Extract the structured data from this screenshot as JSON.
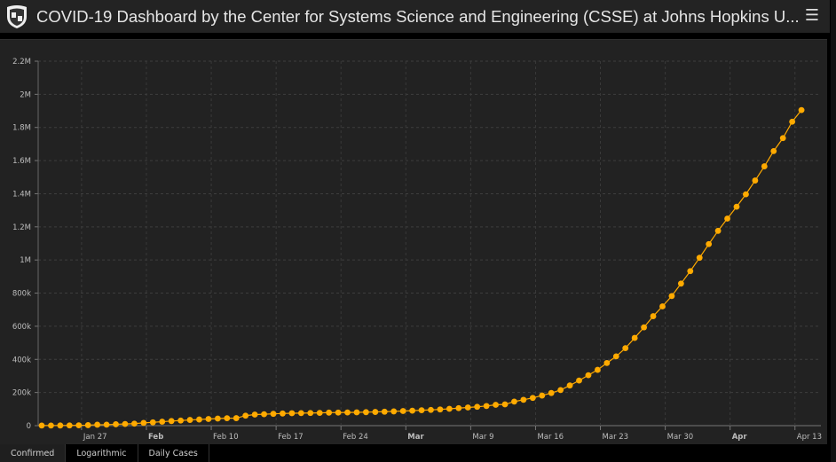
{
  "header": {
    "title": "COVID-19 Dashboard by the Center for Systems Science and Engineering (CSSE) at Johns Hopkins U...",
    "menu_icon": "hamburger-icon",
    "logo": "jhu-shield-logo"
  },
  "tabs": [
    {
      "label": "Confirmed",
      "active": true
    },
    {
      "label": "Logarithmic",
      "active": false
    },
    {
      "label": "Daily Cases",
      "active": false
    }
  ],
  "colors": {
    "series": "#ffaa00",
    "background": "#222222",
    "grid": "#444444"
  },
  "chart_data": {
    "type": "line",
    "title": "",
    "xlabel": "",
    "ylabel": "",
    "ylim": [
      0,
      2200000
    ],
    "yticks": [
      {
        "v": 0,
        "label": "0"
      },
      {
        "v": 200000,
        "label": "200k"
      },
      {
        "v": 400000,
        "label": "400k"
      },
      {
        "v": 600000,
        "label": "600k"
      },
      {
        "v": 800000,
        "label": "800k"
      },
      {
        "v": 1000000,
        "label": "1M"
      },
      {
        "v": 1200000,
        "label": "1.2M"
      },
      {
        "v": 1400000,
        "label": "1.4M"
      },
      {
        "v": 1600000,
        "label": "1.6M"
      },
      {
        "v": 1800000,
        "label": "1.8M"
      },
      {
        "v": 2000000,
        "label": "2M"
      },
      {
        "v": 2200000,
        "label": "2.2M"
      }
    ],
    "xticks": [
      {
        "day": 5,
        "label": "Jan 27",
        "bold": false
      },
      {
        "day": 12,
        "label": "Feb",
        "bold": true
      },
      {
        "day": 19,
        "label": "Feb 10",
        "bold": false
      },
      {
        "day": 26,
        "label": "Feb 17",
        "bold": false
      },
      {
        "day": 33,
        "label": "Feb 24",
        "bold": false
      },
      {
        "day": 40,
        "label": "Mar",
        "bold": true
      },
      {
        "day": 47,
        "label": "Mar 9",
        "bold": false
      },
      {
        "day": 54,
        "label": "Mar 16",
        "bold": false
      },
      {
        "day": 61,
        "label": "Mar 23",
        "bold": false
      },
      {
        "day": 68,
        "label": "Mar 30",
        "bold": false
      },
      {
        "day": 75,
        "label": "Apr",
        "bold": true
      },
      {
        "day": 82,
        "label": "Apr 13",
        "bold": false
      }
    ],
    "x_start": "Jan 22",
    "x_unit": "day",
    "grid": true,
    "legend": "none",
    "series": [
      {
        "name": "Confirmed",
        "values": [
          555,
          654,
          941,
          1434,
          2118,
          2927,
          5578,
          6166,
          8234,
          9927,
          12038,
          16787,
          19881,
          23892,
          27635,
          30794,
          34391,
          37120,
          40150,
          42762,
          44802,
          45221,
          60368,
          66885,
          69030,
          71224,
          73258,
          75136,
          75639,
          76197,
          76819,
          78572,
          78958,
          79561,
          80406,
          81388,
          82746,
          84112,
          86011,
          88369,
          90306,
          92840,
          95120,
          97886,
          101801,
          105847,
          109821,
          113590,
          118620,
          125875,
          128352,
          145205,
          156101,
          167454,
          181574,
          197102,
          214821,
          242570,
          272208,
          304507,
          336953,
          378235,
          418045,
          467653,
          529591,
          593291,
          660706,
          720117,
          782365,
          857487,
          932605,
          1013466,
          1095917,
          1176060,
          1249754,
          1321481,
          1396476,
          1479804,
          1565278,
          1657526,
          1735650,
          1834721,
          1904838
        ]
      }
    ]
  }
}
